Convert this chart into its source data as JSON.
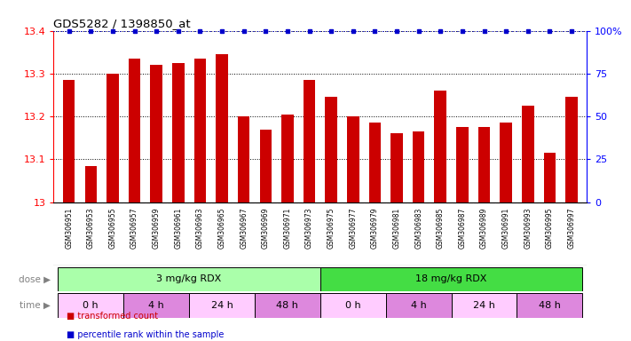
{
  "title": "GDS5282 / 1398850_at",
  "samples": [
    "GSM306951",
    "GSM306953",
    "GSM306955",
    "GSM306957",
    "GSM306959",
    "GSM306961",
    "GSM306963",
    "GSM306965",
    "GSM306967",
    "GSM306969",
    "GSM306971",
    "GSM306973",
    "GSM306975",
    "GSM306977",
    "GSM306979",
    "GSM306981",
    "GSM306983",
    "GSM306985",
    "GSM306987",
    "GSM306989",
    "GSM306991",
    "GSM306993",
    "GSM306995",
    "GSM306997"
  ],
  "values": [
    13.285,
    13.085,
    13.3,
    13.335,
    13.32,
    13.325,
    13.335,
    13.345,
    13.2,
    13.17,
    13.205,
    13.285,
    13.245,
    13.2,
    13.185,
    13.16,
    13.165,
    13.26,
    13.175,
    13.175,
    13.185,
    13.225,
    13.115,
    13.245
  ],
  "bar_color": "#cc0000",
  "percentile_color": "#0000cc",
  "ylim_left": [
    13.0,
    13.4
  ],
  "ylim_right": [
    0,
    100
  ],
  "yticks_left": [
    13.0,
    13.1,
    13.2,
    13.3,
    13.4
  ],
  "ytick_labels_left": [
    "13",
    "13.1",
    "13.2",
    "13.3",
    "13.4"
  ],
  "yticks_right": [
    0,
    25,
    50,
    75,
    100
  ],
  "ytick_labels_right": [
    "0",
    "25",
    "50",
    "75",
    "100%"
  ],
  "background_color": "#ffffff",
  "label_area_color": "#d3d3d3",
  "dose_groups": [
    {
      "label": "3 mg/kg RDX",
      "start": 0,
      "end": 11,
      "color": "#aaffaa"
    },
    {
      "label": "18 mg/kg RDX",
      "start": 12,
      "end": 23,
      "color": "#44dd44"
    }
  ],
  "time_groups": [
    {
      "label": "0 h",
      "start": 0,
      "end": 2,
      "color": "#ffccff"
    },
    {
      "label": "4 h",
      "start": 3,
      "end": 5,
      "color": "#dd88dd"
    },
    {
      "label": "24 h",
      "start": 6,
      "end": 8,
      "color": "#ffccff"
    },
    {
      "label": "48 h",
      "start": 9,
      "end": 11,
      "color": "#dd88dd"
    },
    {
      "label": "0 h",
      "start": 12,
      "end": 14,
      "color": "#ffccff"
    },
    {
      "label": "4 h",
      "start": 15,
      "end": 17,
      "color": "#dd88dd"
    },
    {
      "label": "24 h",
      "start": 18,
      "end": 20,
      "color": "#ffccff"
    },
    {
      "label": "48 h",
      "start": 21,
      "end": 23,
      "color": "#dd88dd"
    }
  ],
  "legend_items": [
    {
      "label": "transformed count",
      "color": "#cc0000"
    },
    {
      "label": "percentile rank within the sample",
      "color": "#0000cc"
    }
  ]
}
